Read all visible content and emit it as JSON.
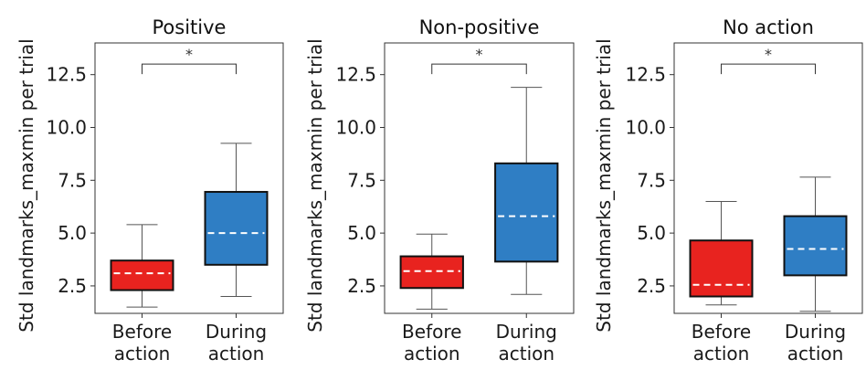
{
  "chart_data": [
    {
      "type": "box",
      "title": "Positive",
      "ylabel": "Std landmarks_maxmin per trial",
      "ylim": [
        1.2,
        14.0
      ],
      "yticks": [
        "2.5",
        "5.0",
        "7.5",
        "10.0",
        "12.5"
      ],
      "ytick_values": [
        2.5,
        5.0,
        7.5,
        10.0,
        12.5
      ],
      "categories": [
        [
          "Before",
          "action"
        ],
        [
          "During",
          "action"
        ]
      ],
      "boxes": [
        {
          "whisker_low": 1.5,
          "q1": 2.3,
          "mean": 3.1,
          "q3": 3.7,
          "whisker_high": 5.4,
          "color": "#e8231f"
        },
        {
          "whisker_low": 2.0,
          "q1": 3.5,
          "mean": 5.0,
          "q3": 6.95,
          "whisker_high": 9.25,
          "color": "#2f7ec4"
        }
      ],
      "significance": "*"
    },
    {
      "type": "box",
      "title": "Non-positive",
      "ylabel": "Std landmarks_maxmin per trial",
      "ylim": [
        1.2,
        14.0
      ],
      "yticks": [
        "2.5",
        "5.0",
        "7.5",
        "10.0",
        "12.5"
      ],
      "ytick_values": [
        2.5,
        5.0,
        7.5,
        10.0,
        12.5
      ],
      "categories": [
        [
          "Before",
          "action"
        ],
        [
          "During",
          "action"
        ]
      ],
      "boxes": [
        {
          "whisker_low": 1.4,
          "q1": 2.4,
          "mean": 3.2,
          "q3": 3.9,
          "whisker_high": 4.95,
          "color": "#e8231f"
        },
        {
          "whisker_low": 2.1,
          "q1": 3.65,
          "mean": 5.8,
          "q3": 8.3,
          "whisker_high": 11.9,
          "color": "#2f7ec4"
        }
      ],
      "significance": "*"
    },
    {
      "type": "box",
      "title": "No action",
      "ylabel": "Std landmarks_maxmin per trial",
      "ylim": [
        1.2,
        14.0
      ],
      "yticks": [
        "2.5",
        "5.0",
        "7.5",
        "10.0",
        "12.5"
      ],
      "ytick_values": [
        2.5,
        5.0,
        7.5,
        10.0,
        12.5
      ],
      "categories": [
        [
          "Before",
          "action"
        ],
        [
          "During",
          "action"
        ]
      ],
      "boxes": [
        {
          "whisker_low": 1.6,
          "q1": 2.0,
          "mean": 2.55,
          "q3": 4.65,
          "whisker_high": 6.5,
          "color": "#e8231f"
        },
        {
          "whisker_low": 1.3,
          "q1": 3.0,
          "mean": 4.25,
          "q3": 5.8,
          "whisker_high": 7.65,
          "color": "#2f7ec4"
        }
      ],
      "significance": "*"
    }
  ]
}
